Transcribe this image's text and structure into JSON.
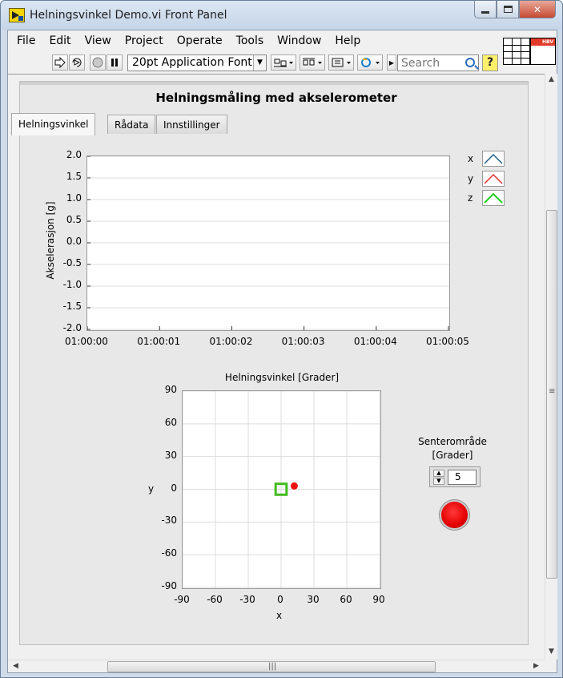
{
  "window": {
    "title": "Helningsvinkel Demo.vi Front Panel"
  },
  "menu": {
    "items": [
      "File",
      "Edit",
      "View",
      "Project",
      "Operate",
      "Tools",
      "Window",
      "Help"
    ]
  },
  "toolbar": {
    "font_ring": "20pt Application Font",
    "search_placeholder": "Search",
    "help_label": "?"
  },
  "panel": {
    "title": "Helningsmåling med akselerometer",
    "tabs": [
      {
        "label": "Helningsvinkel",
        "active": true
      },
      {
        "label": "Rådata",
        "active": false
      },
      {
        "label": "Innstillinger",
        "active": false
      }
    ]
  },
  "vi_icon": {
    "badge": "HBV"
  },
  "colors": {
    "x": "#1f5f8b",
    "y": "#e03030",
    "z": "#22cc22",
    "led": "#ff0000"
  },
  "chart_data": [
    {
      "type": "line",
      "ylabel": "Akselerasjon [g]",
      "xlabel": "",
      "ylim": [
        -2.0,
        2.0
      ],
      "yticks": [
        "2.0",
        "1.5",
        "1.0",
        "0.5",
        "0.0",
        "-0.5",
        "-1.0",
        "-1.5",
        "-2.0"
      ],
      "xticks": [
        "01:00:00",
        "01:00:01",
        "01:00:02",
        "01:00:03",
        "01:00:04",
        "01:00:05"
      ],
      "grid": true,
      "legend_position": "right",
      "series": [
        {
          "name": "x",
          "values": []
        },
        {
          "name": "y",
          "values": []
        },
        {
          "name": "z",
          "values": []
        }
      ]
    },
    {
      "type": "scatter",
      "title": "Helningsvinkel [Grader]",
      "xlabel": "x",
      "ylabel": "y",
      "xlim": [
        -90,
        90
      ],
      "ylim": [
        -90,
        90
      ],
      "xticks": [
        "-90",
        "-60",
        "-30",
        "0",
        "30",
        "60",
        "90"
      ],
      "yticks": [
        "90",
        "60",
        "30",
        "0",
        "-30",
        "-60",
        "-90"
      ],
      "grid": true,
      "points": [
        {
          "x": 12,
          "y": 3,
          "color": "#ee1111"
        }
      ],
      "target_square": {
        "x": 0,
        "y": 0,
        "half_size": 5,
        "color": "#44bb22"
      }
    }
  ],
  "center_area": {
    "label_line1": "Senterområde",
    "label_line2": "[Grader]",
    "value": "5"
  }
}
